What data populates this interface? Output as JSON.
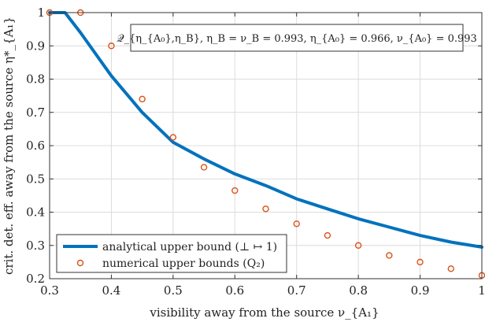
{
  "chart_data": {
    "type": "line",
    "xlabel": "visibility away from the source ν_{A₁}",
    "ylabel": "crit. det. eff. away from the source η*_{A₁}",
    "xlim": [
      0.3,
      1.0
    ],
    "ylim": [
      0.2,
      1.0
    ],
    "x_ticks": [
      "0.3",
      "0.4",
      "0.5",
      "0.6",
      "0.7",
      "0.8",
      "0.9",
      "1"
    ],
    "y_ticks": [
      "0.2",
      "0.3",
      "0.4",
      "0.5",
      "0.6",
      "0.7",
      "0.8",
      "0.9",
      "1"
    ],
    "grid": true,
    "legend_position": "bottom-left",
    "annotation": "𝒬_{η_{A₀},η_B},   η_B = ν_B = 0.993,  η_{A₀} = 0.966,  ν_{A₀} = 0.993",
    "series": [
      {
        "name": "analytical upper bound (⊥ ↦ 1)",
        "style": "line",
        "color": "#0072BD",
        "x": [
          0.3,
          0.325,
          0.35,
          0.4,
          0.45,
          0.5,
          0.55,
          0.6,
          0.65,
          0.7,
          0.75,
          0.8,
          0.85,
          0.9,
          0.95,
          1.0
        ],
        "y": [
          1.0,
          1.0,
          0.94,
          0.81,
          0.7,
          0.61,
          0.56,
          0.515,
          0.48,
          0.44,
          0.41,
          0.38,
          0.355,
          0.33,
          0.31,
          0.295
        ]
      },
      {
        "name": "numerical upper bounds (Q₂)",
        "style": "scatter",
        "color": "#D95319",
        "x": [
          0.3,
          0.35,
          0.4,
          0.45,
          0.5,
          0.55,
          0.6,
          0.65,
          0.7,
          0.75,
          0.8,
          0.85,
          0.9,
          0.95,
          1.0
        ],
        "y": [
          1.0,
          1.0,
          0.9,
          0.74,
          0.625,
          0.535,
          0.465,
          0.41,
          0.365,
          0.33,
          0.3,
          0.27,
          0.25,
          0.23,
          0.21
        ]
      }
    ]
  }
}
